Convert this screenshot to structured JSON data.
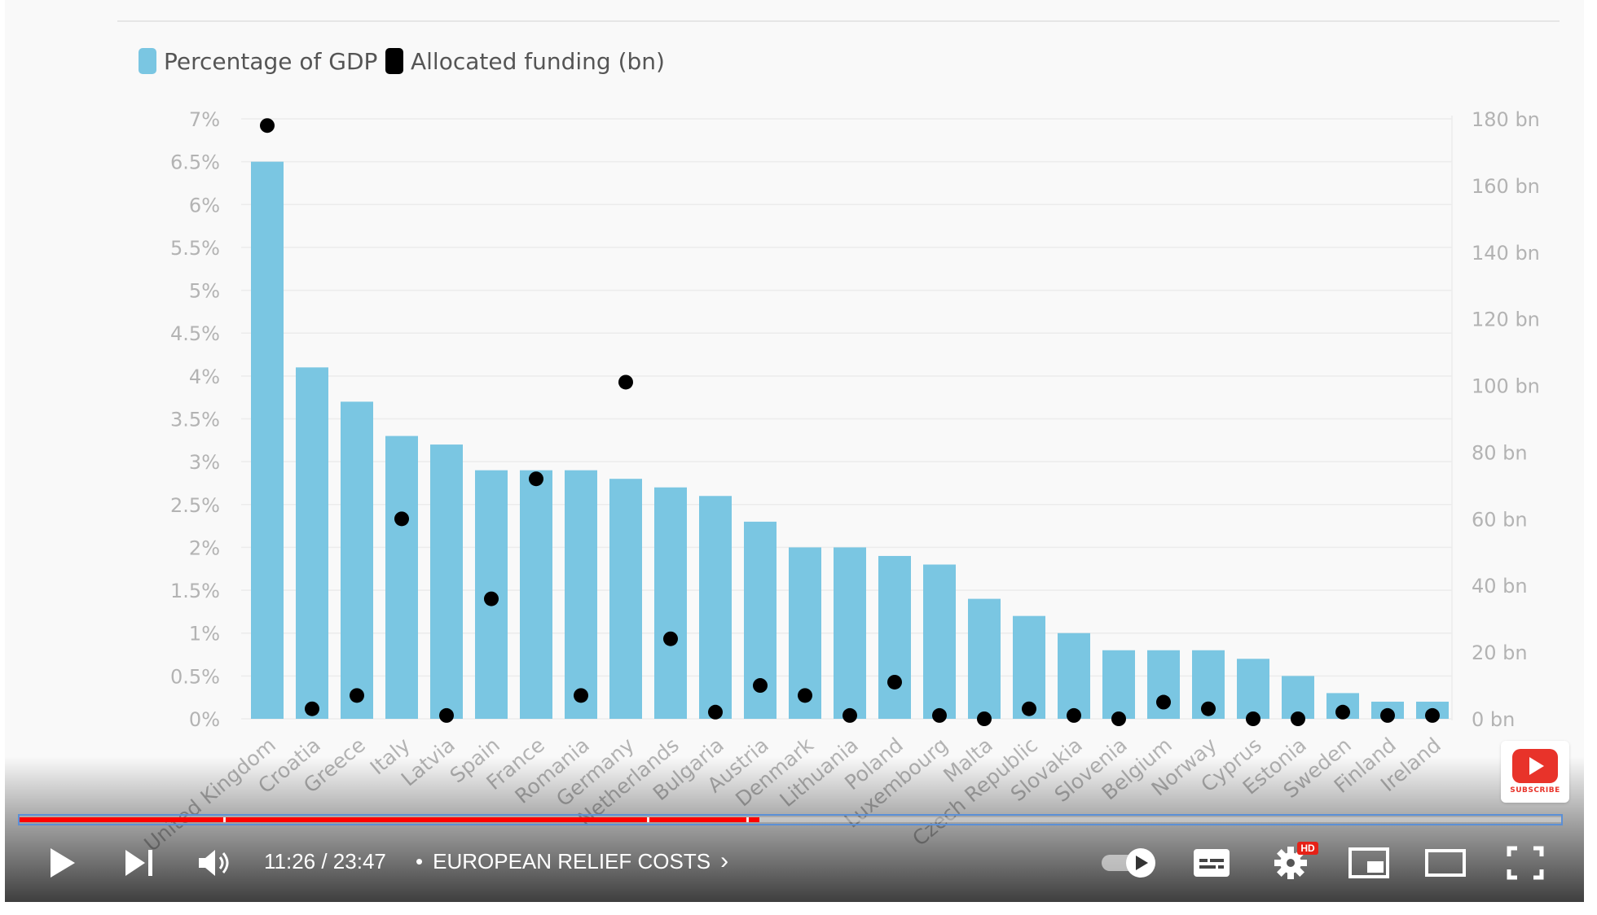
{
  "chart_data": {
    "type": "bar",
    "categories": [
      "United Kingdom",
      "Croatia",
      "Greece",
      "Italy",
      "Latvia",
      "Spain",
      "France",
      "Romania",
      "Germany",
      "Netherlands",
      "Bulgaria",
      "Austria",
      "Denmark",
      "Lithuania",
      "Poland",
      "Luxembourg",
      "Malta",
      "Czech Republic",
      "Slovakia",
      "Slovenia",
      "Belgium",
      "Norway",
      "Cyprus",
      "Estonia",
      "Sweden",
      "Finland",
      "Ireland"
    ],
    "series": [
      {
        "name": "Percentage of GDP",
        "kind": "bar",
        "axis": "left",
        "color": "#7ac6e2",
        "values": [
          6.5,
          4.1,
          3.7,
          3.3,
          3.2,
          2.9,
          2.9,
          2.9,
          2.8,
          2.7,
          2.6,
          2.3,
          2.0,
          2.0,
          1.9,
          1.8,
          1.4,
          1.2,
          1.0,
          0.8,
          0.8,
          0.8,
          0.7,
          0.5,
          0.3,
          0.2,
          0.2
        ]
      },
      {
        "name": "Allocated funding (bn)",
        "kind": "scatter",
        "axis": "right",
        "color": "#000000",
        "values": [
          178,
          3,
          7,
          60,
          1,
          36,
          72,
          7,
          101,
          24,
          2,
          10,
          7,
          1,
          11,
          1,
          0,
          3,
          1,
          0,
          5,
          3,
          0,
          0,
          2,
          1,
          1
        ]
      }
    ],
    "y_left": {
      "min": 0,
      "max": 7,
      "ticks": [
        "0%",
        "0.5%",
        "1%",
        "1.5%",
        "2%",
        "2.5%",
        "3%",
        "3.5%",
        "4%",
        "4.5%",
        "5%",
        "5.5%",
        "6%",
        "6.5%",
        "7%"
      ]
    },
    "y_right": {
      "min": 0,
      "max": 180,
      "ticks": [
        "0 bn",
        "20 bn",
        "40 bn",
        "60 bn",
        "80 bn",
        "100 bn",
        "120 bn",
        "140 bn",
        "160 bn",
        "180 bn"
      ]
    },
    "grid": true,
    "legend_position": "top-left"
  },
  "player": {
    "current_time": "11:26",
    "duration": "23:47",
    "time_display": "11:26 / 23:47",
    "chapter_dot": "•",
    "chapter_title": "EUROPEAN RELIEF COSTS",
    "chapter_chevron": "›",
    "played_fraction": 0.48,
    "buffered_fraction": 0.48,
    "subscribe_label": "SUBSCRIBE",
    "hd_badge": "HD",
    "accent_color": "#ff0000"
  }
}
